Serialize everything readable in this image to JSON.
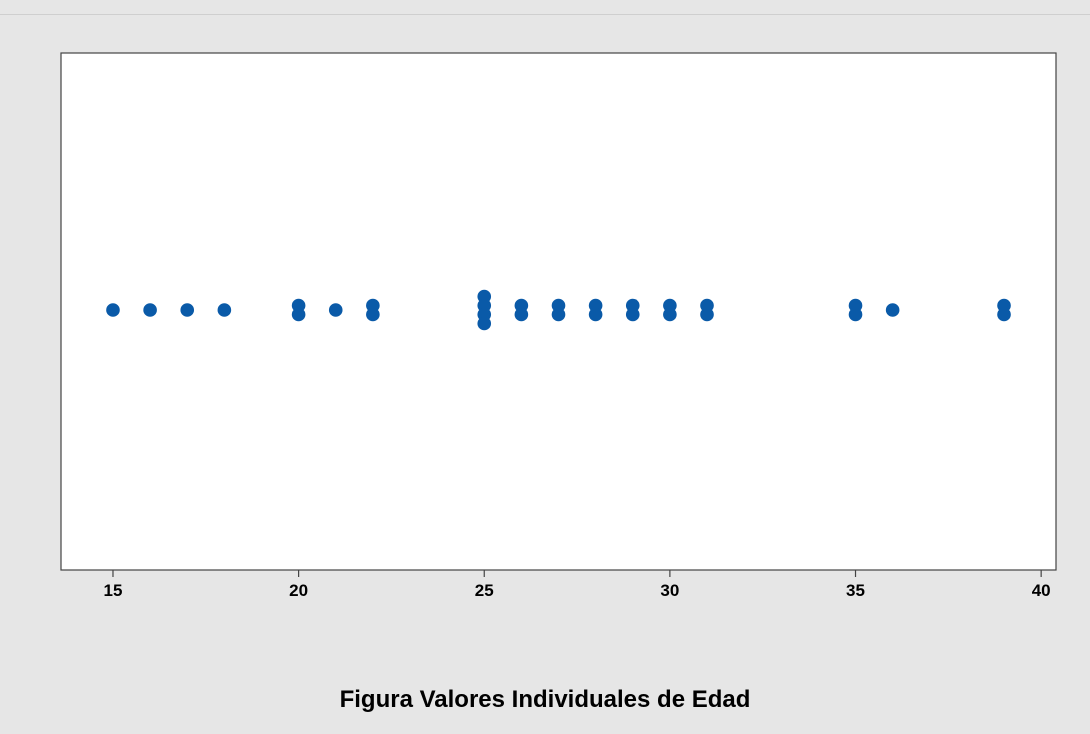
{
  "caption": "Figura Valores Individuales de Edad",
  "colors": {
    "point": "#0a5aa8",
    "plot_bg": "#ffffff",
    "page_bg": "#e6e6e6",
    "axis": "#444444"
  },
  "chart_data": {
    "type": "scatter",
    "title": "",
    "xlabel": "",
    "ylabel": "",
    "xlim": [
      13.6,
      40.4
    ],
    "x_ticks": [
      15,
      20,
      25,
      30,
      35,
      40
    ],
    "tick_labels": [
      "15",
      "20",
      "25",
      "30",
      "35",
      "40"
    ],
    "grid": false,
    "points": [
      {
        "x": 15,
        "count": 1
      },
      {
        "x": 16,
        "count": 1
      },
      {
        "x": 17,
        "count": 1
      },
      {
        "x": 18,
        "count": 1
      },
      {
        "x": 20,
        "count": 2
      },
      {
        "x": 21,
        "count": 1
      },
      {
        "x": 22,
        "count": 2
      },
      {
        "x": 25,
        "count": 4
      },
      {
        "x": 26,
        "count": 2
      },
      {
        "x": 27,
        "count": 2
      },
      {
        "x": 28,
        "count": 2
      },
      {
        "x": 29,
        "count": 2
      },
      {
        "x": 30,
        "count": 2
      },
      {
        "x": 31,
        "count": 2
      },
      {
        "x": 35,
        "count": 2
      },
      {
        "x": 36,
        "count": 1
      },
      {
        "x": 39,
        "count": 2
      }
    ]
  }
}
